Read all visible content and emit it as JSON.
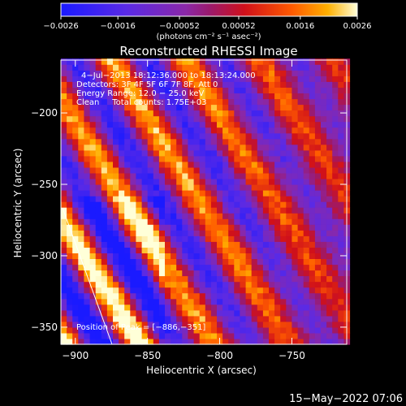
{
  "chart_data": {
    "type": "heatmap",
    "title": "Reconstructed RHESSI Image",
    "xlabel": "Heliocentric X (arcsec)",
    "ylabel": "Heliocentric Y (arcsec)",
    "xlim": [
      -910,
      -712
    ],
    "ylim": [
      -362,
      -163
    ],
    "xticks": [
      -900,
      -850,
      -800,
      -750
    ],
    "xtick_labels": [
      "−900",
      "−850",
      "−800",
      "−750"
    ],
    "yticks": [
      -200,
      -250,
      -300,
      -350
    ],
    "ytick_labels": [
      "−200",
      "−250",
      "−300",
      "−350"
    ],
    "colorbar": {
      "range": [
        -0.0026,
        0.0026
      ],
      "ticks": [
        -0.0026,
        -0.0016,
        -0.00052,
        0.00052,
        0.0016,
        0.0026
      ],
      "tick_labels": [
        "−0.0026",
        "−0.0016",
        "−0.00052",
        "0.00052",
        "0.0016",
        "0.0026"
      ],
      "unit_label": "(photons cm⁻² s⁻¹ asec⁻²)",
      "colors": [
        "#1a1aff",
        "#7a2ad6",
        "#8a28a8",
        "#9a1a6e",
        "#c8102a",
        "#ff5a00",
        "#ffb000",
        "#ffffc8"
      ]
    },
    "annotations": [
      "4−Jul−2013 18:12:36.000 to 18:13:24.000",
      "Detectors: 3F 4F 5F 6F 7F 8F, Att 0",
      "Energy Range: 12.0 − 25.0 keV",
      "Clean     Total counts: 1.75E+03",
      "Position of Peak = [−886,−351]"
    ],
    "peak": {
      "x": -886,
      "y": -351
    },
    "footer": "15−May−2022 07:06",
    "grid": false,
    "image_pattern": {
      "description": "diagonal bands of alternating positive (red/yellow) and negative (blue/purple) flux",
      "stripe_angle_deg": 58,
      "stripe_period_arcsec": 44,
      "amplitude_max": 0.0026
    }
  }
}
